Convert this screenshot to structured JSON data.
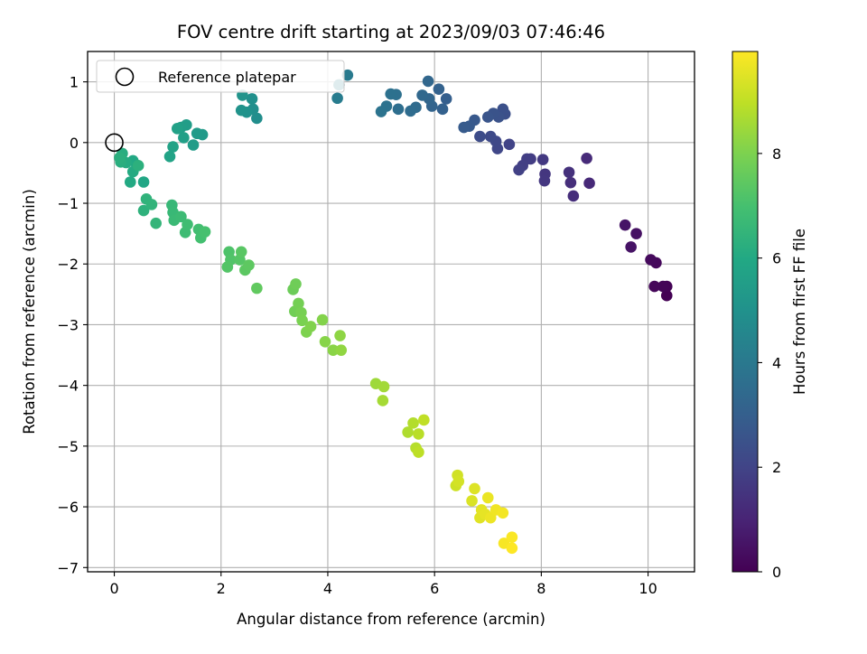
{
  "chart_data": {
    "type": "scatter",
    "title": "FOV centre drift starting at 2023/09/03 07:46:46",
    "xlabel": "Angular distance from reference (arcmin)",
    "ylabel": "Rotation from reference (arcmin)",
    "xlim": [
      -0.5,
      10.87
    ],
    "ylim": [
      -7.07,
      1.5
    ],
    "xticks": [
      0,
      2,
      4,
      6,
      8,
      10
    ],
    "yticks": [
      1,
      0,
      -1,
      -2,
      -3,
      -4,
      -5,
      -6,
      -7
    ],
    "grid": true,
    "legend": {
      "position": "top-left",
      "label": "Reference platepar"
    },
    "reference_point": {
      "x": 0,
      "y": 0
    },
    "colorbar": {
      "label": "Hours from first FF file",
      "range": [
        0,
        9.95
      ],
      "ticks": [
        0,
        2,
        4,
        6,
        8
      ],
      "colormap": "viridis"
    },
    "series": [
      {
        "points": [
          {
            "x": 10.35,
            "y": -2.52,
            "c": 0.0
          },
          {
            "x": 10.35,
            "y": -2.37,
            "c": 0.05
          },
          {
            "x": 10.28,
            "y": -2.37,
            "c": 0.1
          },
          {
            "x": 10.12,
            "y": -2.37,
            "c": 0.15
          },
          {
            "x": 10.15,
            "y": -1.98,
            "c": 0.2
          },
          {
            "x": 10.05,
            "y": -1.93,
            "c": 0.25
          },
          {
            "x": 9.78,
            "y": -1.5,
            "c": 0.45
          },
          {
            "x": 9.68,
            "y": -1.72,
            "c": 0.5
          },
          {
            "x": 9.57,
            "y": -1.36,
            "c": 0.55
          },
          {
            "x": 8.9,
            "y": -0.67,
            "c": 1.15
          },
          {
            "x": 8.85,
            "y": -0.26,
            "c": 1.2
          },
          {
            "x": 8.6,
            "y": -0.88,
            "c": 1.3
          },
          {
            "x": 8.55,
            "y": -0.66,
            "c": 1.35
          },
          {
            "x": 8.52,
            "y": -0.49,
            "c": 1.4
          },
          {
            "x": 8.07,
            "y": -0.52,
            "c": 1.55
          },
          {
            "x": 8.06,
            "y": -0.63,
            "c": 1.6
          },
          {
            "x": 8.03,
            "y": -0.28,
            "c": 1.65
          },
          {
            "x": 7.8,
            "y": -0.27,
            "c": 1.75
          },
          {
            "x": 7.73,
            "y": -0.27,
            "c": 1.8
          },
          {
            "x": 7.65,
            "y": -0.38,
            "c": 1.85
          },
          {
            "x": 7.58,
            "y": -0.45,
            "c": 1.9
          },
          {
            "x": 7.4,
            "y": -0.03,
            "c": 2.0
          },
          {
            "x": 7.18,
            "y": -0.1,
            "c": 2.1
          },
          {
            "x": 7.15,
            "y": 0.02,
            "c": 2.15
          },
          {
            "x": 7.05,
            "y": 0.1,
            "c": 2.2
          },
          {
            "x": 6.85,
            "y": 0.1,
            "c": 2.3
          },
          {
            "x": 7.32,
            "y": 0.47,
            "c": 2.4
          },
          {
            "x": 7.28,
            "y": 0.55,
            "c": 2.45
          },
          {
            "x": 7.2,
            "y": 0.42,
            "c": 2.5
          },
          {
            "x": 7.1,
            "y": 0.48,
            "c": 2.55
          },
          {
            "x": 7.0,
            "y": 0.42,
            "c": 2.6
          },
          {
            "x": 6.75,
            "y": 0.37,
            "c": 2.75
          },
          {
            "x": 6.65,
            "y": 0.27,
            "c": 2.8
          },
          {
            "x": 6.55,
            "y": 0.25,
            "c": 2.85
          },
          {
            "x": 6.22,
            "y": 0.72,
            "c": 3.0
          },
          {
            "x": 6.15,
            "y": 0.55,
            "c": 3.05
          },
          {
            "x": 6.08,
            "y": 0.88,
            "c": 3.1
          },
          {
            "x": 5.95,
            "y": 0.6,
            "c": 3.2
          },
          {
            "x": 5.9,
            "y": 0.72,
            "c": 3.25
          },
          {
            "x": 5.88,
            "y": 1.01,
            "c": 3.3
          },
          {
            "x": 5.77,
            "y": 0.78,
            "c": 3.35
          },
          {
            "x": 5.65,
            "y": 0.58,
            "c": 3.45
          },
          {
            "x": 5.55,
            "y": 0.52,
            "c": 3.5
          },
          {
            "x": 5.32,
            "y": 0.55,
            "c": 3.6
          },
          {
            "x": 5.28,
            "y": 0.79,
            "c": 3.65
          },
          {
            "x": 5.18,
            "y": 0.8,
            "c": 3.7
          },
          {
            "x": 5.1,
            "y": 0.6,
            "c": 3.75
          },
          {
            "x": 5.0,
            "y": 0.51,
            "c": 3.8
          },
          {
            "x": 4.37,
            "y": 1.11,
            "c": 4.05
          },
          {
            "x": 4.18,
            "y": 0.73,
            "c": 4.15
          },
          {
            "x": 4.21,
            "y": 0.95,
            "c": 4.2
          },
          {
            "x": 2.67,
            "y": 0.4,
            "c": 4.85
          },
          {
            "x": 2.6,
            "y": 0.55,
            "c": 4.9
          },
          {
            "x": 2.58,
            "y": 0.72,
            "c": 4.95
          },
          {
            "x": 2.48,
            "y": 0.5,
            "c": 5.0
          },
          {
            "x": 2.38,
            "y": 0.53,
            "c": 5.05
          },
          {
            "x": 2.4,
            "y": 0.78,
            "c": 5.1
          },
          {
            "x": 1.65,
            "y": 0.13,
            "c": 5.35
          },
          {
            "x": 1.55,
            "y": 0.15,
            "c": 5.4
          },
          {
            "x": 1.48,
            "y": -0.04,
            "c": 5.45
          },
          {
            "x": 1.35,
            "y": 0.29,
            "c": 5.5
          },
          {
            "x": 1.25,
            "y": 0.25,
            "c": 5.55
          },
          {
            "x": 1.3,
            "y": 0.08,
            "c": 5.6
          },
          {
            "x": 1.18,
            "y": 0.23,
            "c": 5.65
          },
          {
            "x": 1.1,
            "y": -0.07,
            "c": 5.7
          },
          {
            "x": 1.04,
            "y": -0.23,
            "c": 5.75
          },
          {
            "x": 0.55,
            "y": -0.65,
            "c": 5.9
          },
          {
            "x": 0.35,
            "y": -0.3,
            "c": 5.95
          },
          {
            "x": 0.3,
            "y": -0.65,
            "c": 6.0
          },
          {
            "x": 0.35,
            "y": -0.48,
            "c": 6.05
          },
          {
            "x": 0.22,
            "y": -0.33,
            "c": 6.1
          },
          {
            "x": 0.15,
            "y": -0.18,
            "c": 6.15
          },
          {
            "x": 0.12,
            "y": -0.32,
            "c": 6.2
          },
          {
            "x": 0.1,
            "y": -0.25,
            "c": 6.25
          },
          {
            "x": 0.45,
            "y": -0.38,
            "c": 6.3
          },
          {
            "x": 0.55,
            "y": -1.12,
            "c": 6.35
          },
          {
            "x": 0.6,
            "y": -0.93,
            "c": 6.4
          },
          {
            "x": 0.7,
            "y": -1.02,
            "c": 6.45
          },
          {
            "x": 0.78,
            "y": -1.33,
            "c": 6.5
          },
          {
            "x": 1.08,
            "y": -1.03,
            "c": 6.6
          },
          {
            "x": 1.1,
            "y": -1.15,
            "c": 6.65
          },
          {
            "x": 1.12,
            "y": -1.28,
            "c": 6.7
          },
          {
            "x": 1.25,
            "y": -1.22,
            "c": 6.75
          },
          {
            "x": 1.33,
            "y": -1.48,
            "c": 6.8
          },
          {
            "x": 1.37,
            "y": -1.35,
            "c": 6.85
          },
          {
            "x": 1.58,
            "y": -1.43,
            "c": 6.9
          },
          {
            "x": 1.62,
            "y": -1.57,
            "c": 6.95
          },
          {
            "x": 1.7,
            "y": -1.47,
            "c": 7.0
          },
          {
            "x": 2.15,
            "y": -1.8,
            "c": 7.15
          },
          {
            "x": 2.18,
            "y": -1.93,
            "c": 7.2
          },
          {
            "x": 2.12,
            "y": -2.05,
            "c": 7.25
          },
          {
            "x": 2.35,
            "y": -1.93,
            "c": 7.3
          },
          {
            "x": 2.38,
            "y": -1.8,
            "c": 7.35
          },
          {
            "x": 2.45,
            "y": -2.1,
            "c": 7.4
          },
          {
            "x": 2.52,
            "y": -2.02,
            "c": 7.45
          },
          {
            "x": 2.67,
            "y": -2.4,
            "c": 7.5
          },
          {
            "x": 3.35,
            "y": -2.42,
            "c": 7.7
          },
          {
            "x": 3.4,
            "y": -2.33,
            "c": 7.75
          },
          {
            "x": 3.38,
            "y": -2.78,
            "c": 7.8
          },
          {
            "x": 3.45,
            "y": -2.65,
            "c": 7.85
          },
          {
            "x": 3.5,
            "y": -2.8,
            "c": 7.9
          },
          {
            "x": 3.52,
            "y": -2.93,
            "c": 7.95
          },
          {
            "x": 3.6,
            "y": -3.12,
            "c": 8.0
          },
          {
            "x": 3.68,
            "y": -3.03,
            "c": 8.05
          },
          {
            "x": 3.9,
            "y": -2.92,
            "c": 8.1
          },
          {
            "x": 3.95,
            "y": -3.28,
            "c": 8.15
          },
          {
            "x": 4.1,
            "y": -3.42,
            "c": 8.2
          },
          {
            "x": 4.23,
            "y": -3.18,
            "c": 8.25
          },
          {
            "x": 4.25,
            "y": -3.42,
            "c": 8.3
          },
          {
            "x": 4.9,
            "y": -3.97,
            "c": 8.5
          },
          {
            "x": 5.05,
            "y": -4.02,
            "c": 8.55
          },
          {
            "x": 5.03,
            "y": -4.25,
            "c": 8.6
          },
          {
            "x": 5.5,
            "y": -4.77,
            "c": 8.75
          },
          {
            "x": 5.6,
            "y": -4.62,
            "c": 8.8
          },
          {
            "x": 5.65,
            "y": -5.03,
            "c": 8.85
          },
          {
            "x": 5.7,
            "y": -4.8,
            "c": 8.9
          },
          {
            "x": 5.7,
            "y": -5.1,
            "c": 8.95
          },
          {
            "x": 5.8,
            "y": -4.57,
            "c": 9.0
          },
          {
            "x": 6.4,
            "y": -5.65,
            "c": 9.2
          },
          {
            "x": 6.43,
            "y": -5.48,
            "c": 9.25
          },
          {
            "x": 6.45,
            "y": -5.58,
            "c": 9.3
          },
          {
            "x": 6.7,
            "y": -5.9,
            "c": 9.4
          },
          {
            "x": 6.75,
            "y": -5.7,
            "c": 9.45
          },
          {
            "x": 6.85,
            "y": -6.18,
            "c": 9.5
          },
          {
            "x": 6.88,
            "y": -6.05,
            "c": 9.55
          },
          {
            "x": 6.95,
            "y": -6.12,
            "c": 9.6
          },
          {
            "x": 7.0,
            "y": -5.85,
            "c": 9.65
          },
          {
            "x": 7.05,
            "y": -6.18,
            "c": 9.7
          },
          {
            "x": 7.15,
            "y": -6.05,
            "c": 9.75
          },
          {
            "x": 7.28,
            "y": -6.1,
            "c": 9.8
          },
          {
            "x": 7.3,
            "y": -6.6,
            "c": 9.85
          },
          {
            "x": 7.45,
            "y": -6.5,
            "c": 9.9
          },
          {
            "x": 7.45,
            "y": -6.68,
            "c": 9.95
          }
        ]
      }
    ]
  }
}
